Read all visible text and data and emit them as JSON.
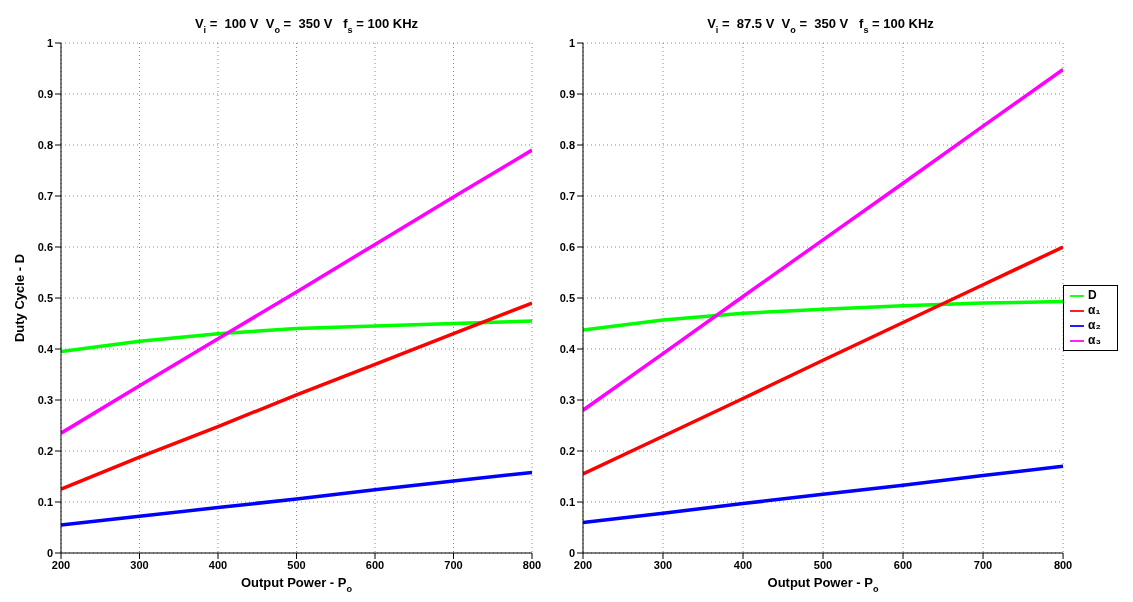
{
  "chart_data": [
    {
      "type": "line",
      "title": "V$_{i}$ =  100 V  V$_{o}$ =  350 V   f$_{s}$ = 100 KHz",
      "xlabel": "Output Power - P$_{o}$",
      "ylabel": "Duty Cycle - D",
      "x": [
        200,
        300,
        400,
        500,
        600,
        700,
        800
      ],
      "xlim": [
        200,
        800
      ],
      "xticks": [
        200,
        300,
        400,
        500,
        600,
        700,
        800
      ],
      "ylim": [
        0,
        1
      ],
      "yticks": [
        0,
        0.1,
        0.2,
        0.3,
        0.4,
        0.5,
        0.6,
        0.7,
        0.8,
        0.9,
        1
      ],
      "grid": true,
      "legend": false,
      "marker": "none",
      "line_style": "solid",
      "series": [
        {
          "color": "#00ff00",
          "values": [
            0.395,
            0.415,
            0.43,
            0.44,
            0.445,
            0.45,
            0.455
          ]
        },
        {
          "color": "#ff0000",
          "values": [
            0.125,
            0.188,
            0.248,
            0.31,
            0.37,
            0.43,
            0.49
          ]
        },
        {
          "color": "#0000ff",
          "values": [
            0.055,
            0.072,
            0.089,
            0.106,
            0.124,
            0.141,
            0.158
          ]
        },
        {
          "color": "#ff00ff",
          "values": [
            0.235,
            0.328,
            0.42,
            0.512,
            0.605,
            0.698,
            0.79
          ]
        }
      ]
    },
    {
      "type": "line",
      "title": "V$_{i}$ =  87.5 V  V$_{o}$ =  350 V   f$_{s}$ = 100 KHz",
      "xlabel": "Output Power - P$_{o}$",
      "x": [
        200,
        300,
        400,
        500,
        600,
        700,
        800
      ],
      "xlim": [
        200,
        800
      ],
      "xticks": [
        200,
        300,
        400,
        500,
        600,
        700,
        800
      ],
      "ylim": [
        0,
        1
      ],
      "yticks": [
        0,
        0.1,
        0.2,
        0.3,
        0.4,
        0.5,
        0.6,
        0.7,
        0.8,
        0.9,
        1
      ],
      "grid": true,
      "legend": "right",
      "marker": "none",
      "line_style": "solid",
      "series": [
        {
          "name": "D",
          "color": "#00ff00",
          "values": [
            0.437,
            0.457,
            0.47,
            0.478,
            0.485,
            0.49,
            0.493
          ]
        },
        {
          "name": "α₁",
          "color": "#ff0000",
          "values": [
            0.155,
            0.229,
            0.303,
            0.378,
            0.452,
            0.526,
            0.6
          ]
        },
        {
          "name": "α₂",
          "color": "#0000ff",
          "values": [
            0.06,
            0.078,
            0.097,
            0.115,
            0.133,
            0.152,
            0.17
          ]
        },
        {
          "name": "α₃",
          "color": "#ff00ff",
          "values": [
            0.28,
            0.391,
            0.503,
            0.614,
            0.725,
            0.837,
            0.948
          ]
        }
      ]
    }
  ]
}
